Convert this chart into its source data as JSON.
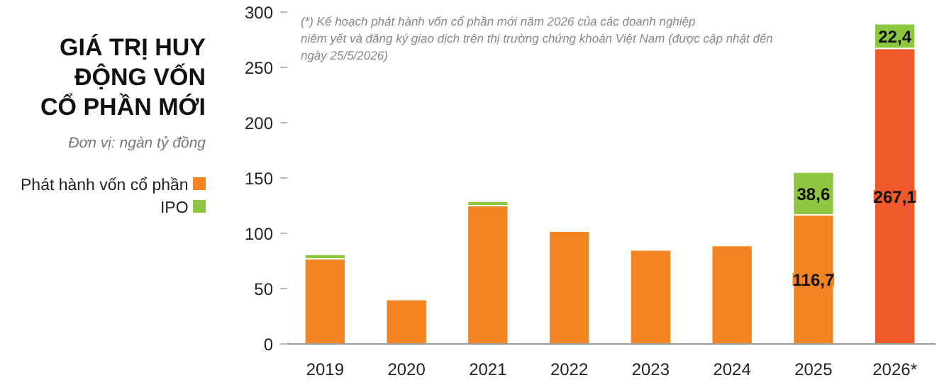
{
  "chart_data": {
    "type": "bar",
    "title": "GIÁ TRỊ HUY ĐỘNG VỐN CỔ PHẦN MỚI",
    "subtitle": "Đơn vị: ngàn tỷ đồng",
    "annotations": [
      "(*) Kế hoạch phát hành vốn cổ phần mới năm 2026 của các doanh nghiệp\nniêm yết và đăng ký giao dịch trên thị trường chứng khoán Việt Nam (được cập nhật đến\nngày 25/5/2026)"
    ],
    "categories": [
      "2019",
      "2020",
      "2021",
      "2022",
      "2023",
      "2024",
      "2025",
      "2026*"
    ],
    "stacked": true,
    "legend": "left",
    "grid": false,
    "ylim": [
      0,
      300
    ],
    "yticks": [
      0,
      50,
      100,
      150,
      200,
      250,
      300
    ],
    "series": [
      {
        "name": "Phát hành vốn cổ phần",
        "color": "#f28423",
        "colors": [
          "#f28423",
          "#f28423",
          "#f28423",
          "#f28423",
          "#f28423",
          "#f28423",
          "#f28423",
          "#f05a2a"
        ],
        "values": [
          77,
          40,
          125,
          102,
          85,
          89,
          116.7,
          267.1
        ],
        "value_labels": [
          null,
          null,
          null,
          null,
          null,
          null,
          "116,7",
          "267,1"
        ]
      },
      {
        "name": "IPO",
        "color": "#8dc63f",
        "values": [
          4,
          null,
          4,
          null,
          null,
          null,
          38.6,
          22.4
        ],
        "value_labels": [
          null,
          null,
          null,
          null,
          null,
          null,
          "38,6",
          "22,4"
        ]
      }
    ]
  }
}
